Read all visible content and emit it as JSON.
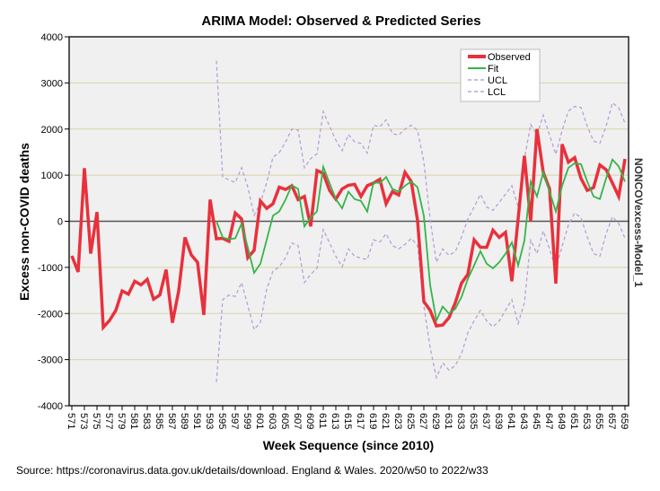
{
  "chart_data": {
    "type": "line",
    "title": "ARIMA Model: Observed & Predicted Series",
    "xlabel": "Week Sequence (since 2010)",
    "ylabel": "Excess non-COVID deaths",
    "right_label": "NONCOVexcess-Model_1",
    "source": "Source: https://coronavirus.data.gov.uk/details/download. England & Wales. 2020/w50 to 2022/w33",
    "xlim": [
      571,
      659
    ],
    "ylim": [
      -4000,
      4000
    ],
    "yticks": [
      4000,
      3000,
      2000,
      1000,
      0,
      -1000,
      -2000,
      -3000,
      -4000
    ],
    "xticks": [
      571,
      573,
      575,
      577,
      579,
      581,
      583,
      585,
      587,
      589,
      591,
      593,
      595,
      597,
      599,
      601,
      603,
      605,
      607,
      609,
      611,
      613,
      615,
      617,
      619,
      621,
      623,
      625,
      627,
      629,
      631,
      633,
      635,
      637,
      639,
      641,
      643,
      645,
      647,
      649,
      651,
      653,
      655,
      657,
      659
    ],
    "grid": true,
    "legend_position": "top-right",
    "colors": {
      "observed": "#e8313c",
      "fit": "#36b44a",
      "ucl": "#b8a0d8",
      "lcl": "#b8a0d8",
      "plot_bg": "#f0f0f0",
      "gridline": "#d8d2a8",
      "zero_line": "#555555"
    },
    "series": [
      {
        "name": "Observed",
        "start_week": 571,
        "values": [
          -750,
          -1100,
          1150,
          -700,
          200,
          -2300,
          -2150,
          -1930,
          -1510,
          -1580,
          -1300,
          -1380,
          -1260,
          -1690,
          -1600,
          -1050,
          -2200,
          -1510,
          -350,
          -730,
          -890,
          -2030,
          470,
          -380,
          -370,
          -435,
          180,
          50,
          -790,
          -630,
          440,
          280,
          380,
          740,
          690,
          770,
          470,
          540,
          -110,
          1100,
          1040,
          670,
          480,
          700,
          780,
          800,
          540,
          770,
          830,
          910,
          380,
          640,
          570,
          1060,
          860,
          20,
          -1740,
          -1930,
          -2270,
          -2250,
          -2090,
          -1770,
          -1340,
          -1150,
          -400,
          -565,
          -565,
          -195,
          -350,
          -240,
          -1300,
          50,
          1420,
          -10,
          2000,
          1060,
          700,
          -1350,
          1670,
          1280,
          1380,
          930,
          670,
          730,
          1220,
          1120,
          830,
          540,
          1350
        ]
      },
      {
        "name": "Fit",
        "start_week": 594,
        "values": [
          0,
          -350,
          -390,
          -370,
          -50,
          -570,
          -1120,
          -920,
          -400,
          120,
          215,
          470,
          780,
          700,
          -110,
          80,
          215,
          1180,
          830,
          480,
          280,
          640,
          480,
          440,
          210,
          845,
          830,
          960,
          700,
          640,
          770,
          860,
          735,
          120,
          -1380,
          -2150,
          -1850,
          -2000,
          -1900,
          -1640,
          -1250,
          -955,
          -650,
          -920,
          -1020,
          -890,
          -700,
          -460,
          -960,
          -420,
          860,
          540,
          1060,
          640,
          210,
          770,
          1160,
          1260,
          1240,
          860,
          540,
          480,
          930,
          1340,
          1190,
          860
        ]
      },
      {
        "name": "UCL",
        "start_week": 594,
        "values": [
          3480,
          960,
          900,
          840,
          1160,
          740,
          130,
          400,
          840,
          1390,
          1490,
          1720,
          2000,
          1980,
          1160,
          1360,
          1460,
          2380,
          2060,
          1760,
          1530,
          1880,
          1720,
          1690,
          1480,
          2080,
          2050,
          2200,
          1900,
          1870,
          2000,
          2080,
          1970,
          1290,
          50,
          -890,
          -600,
          -740,
          -660,
          -340,
          50,
          310,
          585,
          310,
          235,
          410,
          585,
          770,
          310,
          1350,
          2100,
          1870,
          2300,
          1870,
          1450,
          1970,
          2390,
          2490,
          2470,
          2060,
          1740,
          1690,
          2060,
          2570,
          2460,
          2130
        ]
      },
      {
        "name": "LCL",
        "start_week": 594,
        "values": [
          -3490,
          -1700,
          -1600,
          -1630,
          -1330,
          -1830,
          -2350,
          -2190,
          -1470,
          -1080,
          -990,
          -790,
          -470,
          -530,
          -1330,
          -1150,
          -1020,
          -180,
          -470,
          -760,
          -990,
          -600,
          -760,
          -800,
          -830,
          -400,
          -450,
          -270,
          -530,
          -600,
          -500,
          -370,
          -530,
          -1830,
          -2740,
          -3390,
          -3070,
          -3230,
          -3130,
          -2870,
          -2420,
          -2160,
          -1930,
          -2160,
          -2290,
          -2160,
          -1930,
          -1700,
          -2220,
          -1770,
          -410,
          -700,
          -210,
          -600,
          -1050,
          -540,
          -80,
          180,
          80,
          -340,
          -700,
          -760,
          -270,
          100,
          -50,
          -370
        ]
      }
    ],
    "legend": [
      {
        "label": "Observed",
        "style": "solid-thick"
      },
      {
        "label": "Fit",
        "style": "solid"
      },
      {
        "label": "UCL",
        "style": "dashed"
      },
      {
        "label": "LCL",
        "style": "dashed"
      }
    ]
  }
}
